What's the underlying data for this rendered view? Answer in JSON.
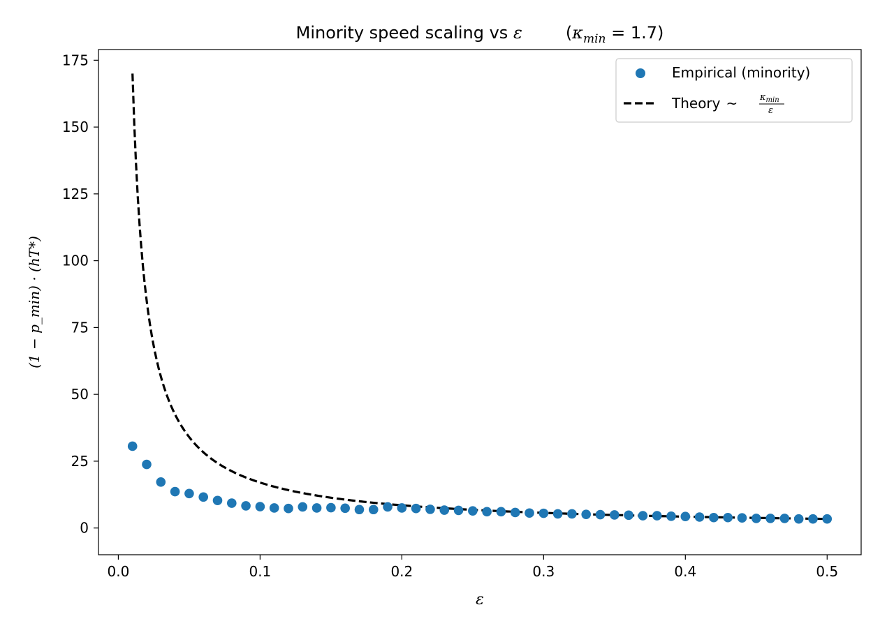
{
  "chart_data": {
    "type": "scatter",
    "title": {
      "main": "Minority speed scaling vs ",
      "eps": "ε",
      "kappa": "κ",
      "kappa_sub": "min",
      "kappa_value": " = 1.7)",
      "open_paren": "("
    },
    "xlabel": "ε",
    "ylabel": "(1 − p_min) · (hT*)",
    "xlim": [
      -0.014,
      0.524
    ],
    "ylim": [
      -10,
      179
    ],
    "xticks": [
      0.0,
      0.1,
      0.2,
      0.3,
      0.4,
      0.5
    ],
    "xtick_labels": [
      "0.0",
      "0.1",
      "0.2",
      "0.3",
      "0.4",
      "0.5"
    ],
    "yticks": [
      0,
      25,
      50,
      75,
      100,
      125,
      150,
      175
    ],
    "ytick_labels": [
      "0",
      "25",
      "50",
      "75",
      "100",
      "125",
      "150",
      "175"
    ],
    "grid": false,
    "legend_position": "top-right",
    "series": [
      {
        "name": "Empirical (minority)",
        "kind": "scatter",
        "color": "#1f77b4",
        "x": [
          0.01,
          0.02,
          0.03,
          0.04,
          0.05,
          0.06,
          0.07,
          0.08,
          0.09,
          0.1,
          0.11,
          0.12,
          0.13,
          0.14,
          0.15,
          0.16,
          0.17,
          0.18,
          0.19,
          0.2,
          0.21,
          0.22,
          0.23,
          0.24,
          0.25,
          0.26,
          0.27,
          0.28,
          0.29,
          0.3,
          0.31,
          0.32,
          0.33,
          0.34,
          0.35,
          0.36,
          0.37,
          0.38,
          0.39,
          0.4,
          0.41,
          0.42,
          0.43,
          0.44,
          0.45,
          0.46,
          0.47,
          0.48,
          0.49,
          0.5
        ],
        "y": [
          30.6,
          23.8,
          17.2,
          13.6,
          12.9,
          11.6,
          10.3,
          9.3,
          8.3,
          8.0,
          7.5,
          7.3,
          7.9,
          7.5,
          7.6,
          7.4,
          6.9,
          6.9,
          7.9,
          7.5,
          7.3,
          7.0,
          6.7,
          6.6,
          6.4,
          6.1,
          6.1,
          5.8,
          5.6,
          5.5,
          5.3,
          5.3,
          5.1,
          5.0,
          4.9,
          4.8,
          4.6,
          4.6,
          4.4,
          4.3,
          4.1,
          3.9,
          3.9,
          3.8,
          3.6,
          3.6,
          3.6,
          3.4,
          3.4,
          3.4
        ]
      },
      {
        "name": "Theory",
        "legend_math": "~",
        "frac_num": "κ",
        "frac_num_sub": "min",
        "frac_den": "ε",
        "kind": "line",
        "style": "dashed",
        "color": "#000000",
        "formula": "1.7 / ε",
        "coefficient": 1.7,
        "x_range": [
          0.01,
          0.5
        ]
      }
    ]
  }
}
